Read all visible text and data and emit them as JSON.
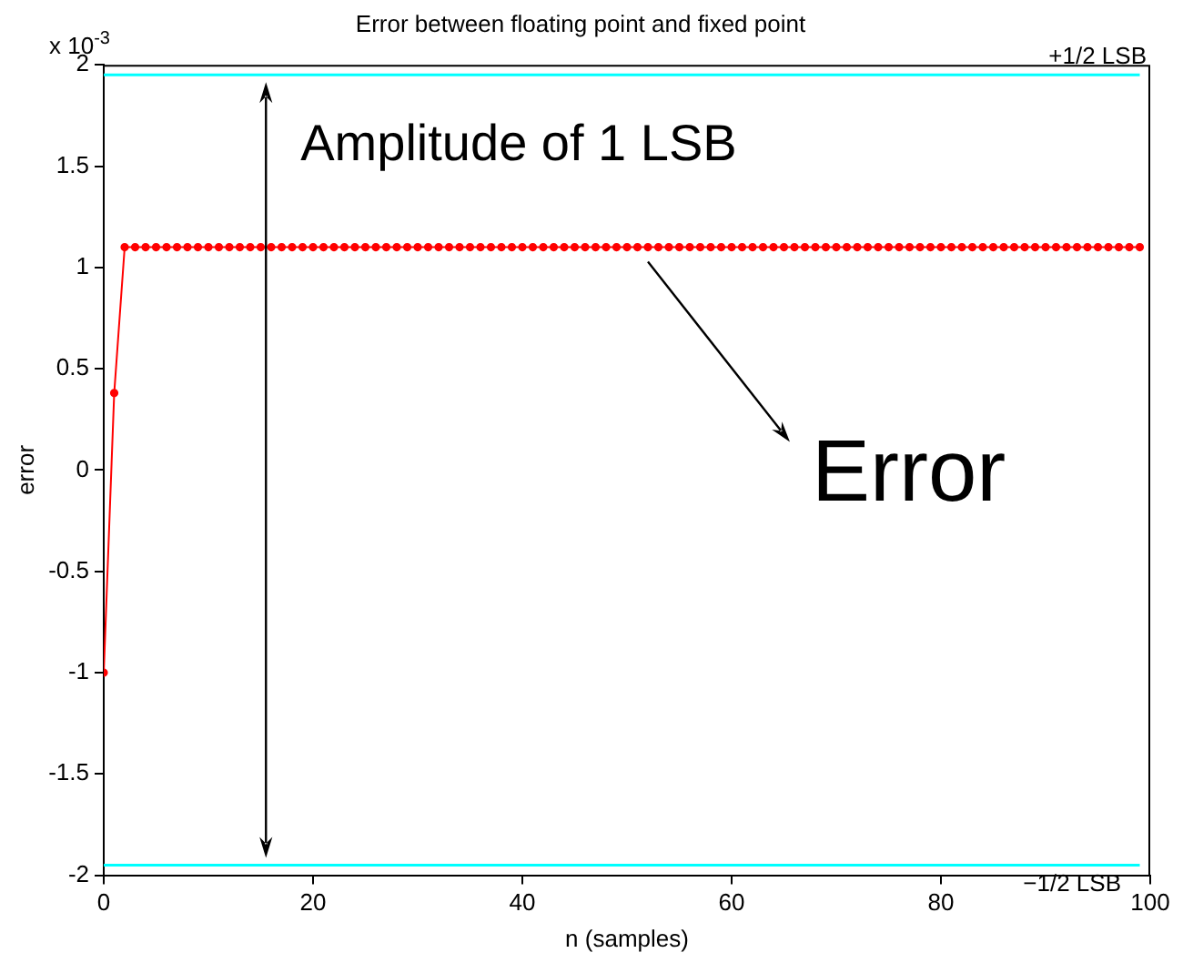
{
  "chart_data": {
    "type": "line",
    "title": "Error between floating point and fixed point",
    "xlabel": "n (samples)",
    "ylabel": "error",
    "x": [
      0,
      1,
      2,
      3,
      4,
      5,
      6,
      7,
      8,
      9,
      10,
      11,
      12,
      13,
      14,
      15,
      16,
      17,
      18,
      19,
      20,
      21,
      22,
      23,
      24,
      25,
      26,
      27,
      28,
      29,
      30,
      31,
      32,
      33,
      34,
      35,
      36,
      37,
      38,
      39,
      40,
      41,
      42,
      43,
      44,
      45,
      46,
      47,
      48,
      49,
      50,
      51,
      52,
      53,
      54,
      55,
      56,
      57,
      58,
      59,
      60,
      61,
      62,
      63,
      64,
      65,
      66,
      67,
      68,
      69,
      70,
      71,
      72,
      73,
      74,
      75,
      76,
      77,
      78,
      79,
      80,
      81,
      82,
      83,
      84,
      85,
      86,
      87,
      88,
      89,
      90,
      91,
      92,
      93,
      94,
      95,
      96,
      97,
      98,
      99
    ],
    "series": [
      {
        "color": "#ff0000",
        "values": [
          -1,
          0.38,
          1.1,
          1.1,
          1.1,
          1.1,
          1.1,
          1.1,
          1.1,
          1.1,
          1.1,
          1.1,
          1.1,
          1.1,
          1.1,
          1.1,
          1.1,
          1.1,
          1.1,
          1.1,
          1.1,
          1.1,
          1.1,
          1.1,
          1.1,
          1.1,
          1.1,
          1.1,
          1.1,
          1.1,
          1.1,
          1.1,
          1.1,
          1.1,
          1.1,
          1.1,
          1.1,
          1.1,
          1.1,
          1.1,
          1.1,
          1.1,
          1.1,
          1.1,
          1.1,
          1.1,
          1.1,
          1.1,
          1.1,
          1.1,
          1.1,
          1.1,
          1.1,
          1.1,
          1.1,
          1.1,
          1.1,
          1.1,
          1.1,
          1.1,
          1.1,
          1.1,
          1.1,
          1.1,
          1.1,
          1.1,
          1.1,
          1.1,
          1.1,
          1.1,
          1.1,
          1.1,
          1.1,
          1.1,
          1.1,
          1.1,
          1.1,
          1.1,
          1.1,
          1.1,
          1.1,
          1.1,
          1.1,
          1.1,
          1.1,
          1.1,
          1.1,
          1.1,
          1.1,
          1.1,
          1.1,
          1.1,
          1.1,
          1.1,
          1.1,
          1.1,
          1.1,
          1.1,
          1.1,
          1.1
        ]
      }
    ],
    "xlim": [
      0,
      100
    ],
    "xticks": [
      0,
      20,
      40,
      60,
      80,
      100
    ],
    "ylim": [
      -2,
      2
    ],
    "yticks": [
      -2,
      -1.5,
      -1,
      -0.5,
      0,
      0.5,
      1,
      1.5,
      2
    ],
    "ref_lines": [
      {
        "axis": "y",
        "value": 1.95,
        "label": "+1/2 LSB",
        "color": "#00ffff"
      },
      {
        "axis": "y",
        "value": -1.95,
        "label": "−1/2 LSB",
        "color": "#00ffff"
      }
    ],
    "annotations": [
      "x 10$^{-3}$",
      {
        "text": "Amplitude of 1 LSB",
        "x": 15.5,
        "y": 1.95
      },
      {
        "text": "Error",
        "x": 52,
        "y": 1.1
      }
    ],
    "grid": false,
    "legend": false,
    "marker": "circle",
    "line_style": "solid"
  }
}
